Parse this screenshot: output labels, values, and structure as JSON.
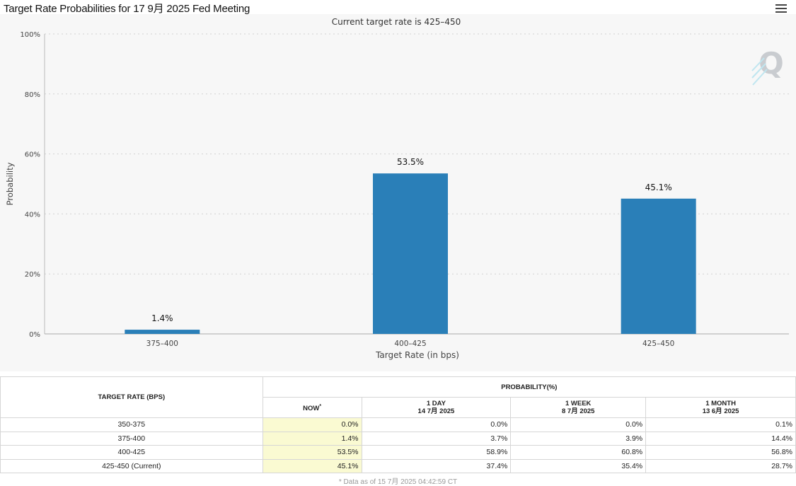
{
  "header": {
    "title": "Target Rate Probabilities for 17 9月 2025 Fed Meeting",
    "menu_icon": "hamburger-menu-icon"
  },
  "chart_data": {
    "type": "bar",
    "title": "Current target rate is 425–450",
    "xlabel": "Target Rate (in bps)",
    "ylabel": "Probability",
    "categories": [
      "375–400",
      "400–425",
      "425–450"
    ],
    "values": [
      1.4,
      53.5,
      45.1
    ],
    "data_labels": [
      "1.4%",
      "53.5%",
      "45.1%"
    ],
    "ylim": [
      0,
      100
    ],
    "yticks": [
      0,
      20,
      40,
      60,
      80,
      100
    ],
    "ytick_labels": [
      "0%",
      "20%",
      "40%",
      "60%",
      "80%",
      "100%"
    ],
    "bar_color": "#2a7fb8",
    "grid": true,
    "watermark": "Q"
  },
  "table": {
    "rate_header": "TARGET RATE (BPS)",
    "prob_header": "PROBABILITY(%)",
    "columns": [
      {
        "label": "NOW",
        "sup": "*",
        "date": ""
      },
      {
        "label": "1 DAY",
        "date": "14 7月 2025"
      },
      {
        "label": "1 WEEK",
        "date": "8 7月 2025"
      },
      {
        "label": "1 MONTH",
        "date": "13 6月 2025"
      }
    ],
    "rows": [
      {
        "rate": "350-375",
        "now": "0.0%",
        "day": "0.0%",
        "week": "0.0%",
        "month": "0.1%"
      },
      {
        "rate": "375-400",
        "now": "1.4%",
        "day": "3.7%",
        "week": "3.9%",
        "month": "14.4%"
      },
      {
        "rate": "400-425",
        "now": "53.5%",
        "day": "58.9%",
        "week": "60.8%",
        "month": "56.8%"
      },
      {
        "rate": "425-450 (Current)",
        "now": "45.1%",
        "day": "37.4%",
        "week": "35.4%",
        "month": "28.7%"
      }
    ],
    "now_highlight_color": "#fafad2"
  },
  "footnote": "* Data as of 15 7月 2025 04:42:59 CT"
}
